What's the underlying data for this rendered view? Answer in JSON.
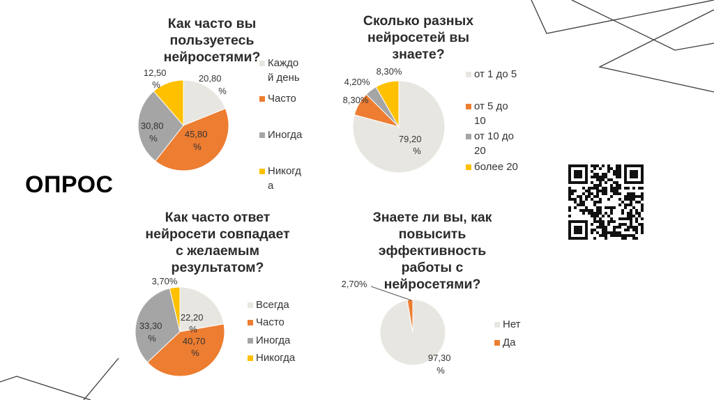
{
  "slide": {
    "title": "ОПРОС"
  },
  "colors": {
    "light": "#e8e6e0",
    "orange": "#ed7d31",
    "gray": "#a5a5a5",
    "yellow": "#ffc000",
    "line": "#3a3a3a"
  },
  "chart_data": [
    {
      "type": "pie",
      "title": "Как часто вы пользуетесь нейросетями?",
      "title_lines": [
        "Как часто вы",
        "пользуетесь",
        "нейросетями?"
      ],
      "series": [
        {
          "name": "Каждый день",
          "value": 20.8,
          "label_lines": [
            "20,80",
            "%"
          ],
          "legend_lines": [
            "Каждо",
            "й день"
          ]
        },
        {
          "name": "Часто",
          "value": 45.8,
          "label_lines": [
            "45,80",
            "%"
          ],
          "legend_lines": [
            "Часто"
          ]
        },
        {
          "name": "Иногда",
          "value": 30.8,
          "label_lines": [
            "30,80",
            "%"
          ],
          "legend_lines": [
            "Иногда"
          ]
        },
        {
          "name": "Никогда",
          "value": 12.5,
          "label_lines": [
            "12,50",
            "%"
          ],
          "legend_lines": [
            "Никогд",
            "а"
          ]
        }
      ]
    },
    {
      "type": "pie",
      "title": "Сколько разных нейросетей вы знаете?",
      "title_lines": [
        "Сколько разных",
        "нейросетей вы",
        "знаете?"
      ],
      "series": [
        {
          "name": "от 1 до 5",
          "value": 79.2,
          "label_lines": [
            "79,20",
            "%"
          ],
          "legend_lines": [
            "от 1 до 5"
          ]
        },
        {
          "name": "от 5 до 10",
          "value": 8.3,
          "label_lines": [
            "8,30%"
          ],
          "legend_lines": [
            "от 5 до",
            "10"
          ]
        },
        {
          "name": "от 10 до 20",
          "value": 4.2,
          "label_lines": [
            "4,20%"
          ],
          "legend_lines": [
            "от 10 до",
            "20"
          ]
        },
        {
          "name": "более 20",
          "value": 8.3,
          "label_lines": [
            "8,30%"
          ],
          "legend_lines": [
            "более 20"
          ]
        }
      ]
    },
    {
      "type": "pie",
      "title": "Как часто ответ нейросети совпадает с желаемым результатом?",
      "title_lines": [
        "Как часто ответ",
        "нейросети совпадает",
        "с желаемым",
        "результатом?"
      ],
      "series": [
        {
          "name": "Всегда",
          "value": 22.2,
          "label_lines": [
            "22,20",
            "%"
          ],
          "legend_lines": [
            "Всегда"
          ]
        },
        {
          "name": "Часто",
          "value": 40.7,
          "label_lines": [
            "40,70",
            "%"
          ],
          "legend_lines": [
            "Часто"
          ]
        },
        {
          "name": "Иногда",
          "value": 33.3,
          "label_lines": [
            "33,30",
            "%"
          ],
          "legend_lines": [
            "Иногда"
          ]
        },
        {
          "name": "Никогда",
          "value": 3.7,
          "label_lines": [
            "3,70%"
          ],
          "legend_lines": [
            "Никогда"
          ]
        }
      ]
    },
    {
      "type": "pie",
      "title": "Знаете ли вы, как повысить эффективность работы с нейросетями?",
      "title_lines": [
        "Знаете ли вы, как",
        "повысить",
        "эффективность",
        "работы с",
        "нейросетями?"
      ],
      "series": [
        {
          "name": "Нет",
          "value": 97.3,
          "label_lines": [
            "97,30",
            "%"
          ],
          "legend_lines": [
            "Нет"
          ]
        },
        {
          "name": "Да",
          "value": 2.7,
          "label_lines": [
            "2,70%"
          ],
          "legend_lines": [
            "Да"
          ]
        }
      ]
    }
  ]
}
